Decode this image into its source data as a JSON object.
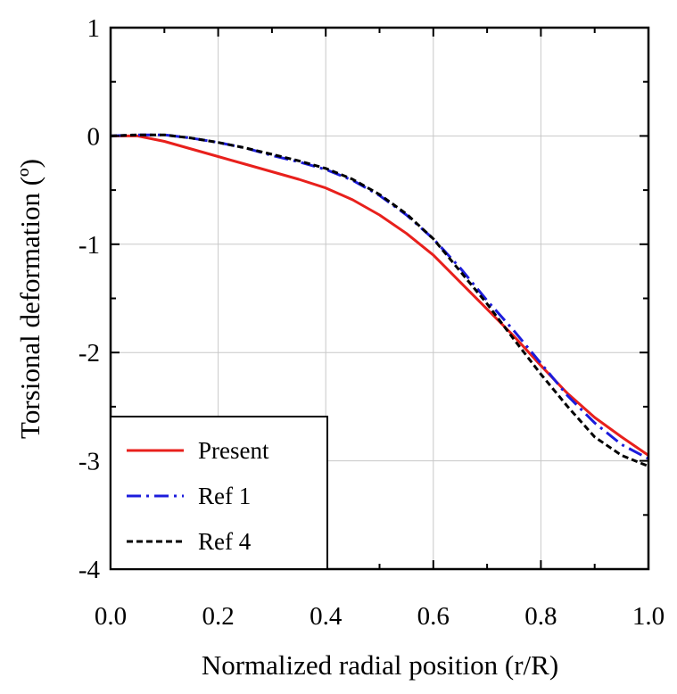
{
  "chart_data": {
    "type": "line",
    "xlabel": "Normalized radial position (r/R)",
    "ylabel": "Torsional deformation (º)",
    "xlim": [
      0.0,
      1.0
    ],
    "ylim": [
      -4,
      1
    ],
    "x_ticks": [
      0.0,
      0.2,
      0.4,
      0.6,
      0.8,
      1.0
    ],
    "x_tick_labels": [
      "0.0",
      "0.2",
      "0.4",
      "0.6",
      "0.8",
      "1.0"
    ],
    "y_ticks": [
      1,
      0,
      -1,
      -2,
      -3,
      -4
    ],
    "y_tick_labels": [
      "1",
      "0",
      "-1",
      "-2",
      "-3",
      "-4"
    ],
    "grid": true,
    "legend_position": "bottom-left",
    "series": [
      {
        "name": "Present",
        "color": "#e8201c",
        "style": "solid",
        "points": [
          [
            0.0,
            0.0
          ],
          [
            0.05,
            0.0
          ],
          [
            0.1,
            -0.05
          ],
          [
            0.15,
            -0.12
          ],
          [
            0.2,
            -0.19
          ],
          [
            0.25,
            -0.26
          ],
          [
            0.3,
            -0.33
          ],
          [
            0.35,
            -0.4
          ],
          [
            0.4,
            -0.48
          ],
          [
            0.45,
            -0.59
          ],
          [
            0.5,
            -0.73
          ],
          [
            0.55,
            -0.9
          ],
          [
            0.6,
            -1.1
          ],
          [
            0.65,
            -1.35
          ],
          [
            0.7,
            -1.6
          ],
          [
            0.75,
            -1.85
          ],
          [
            0.8,
            -2.12
          ],
          [
            0.85,
            -2.38
          ],
          [
            0.9,
            -2.6
          ],
          [
            0.95,
            -2.78
          ],
          [
            1.0,
            -2.95
          ]
        ]
      },
      {
        "name": "Ref 1",
        "color": "#1c1cdc",
        "style": "dashdot",
        "points": [
          [
            0.0,
            0.0
          ],
          [
            0.05,
            0.01
          ],
          [
            0.1,
            0.01
          ],
          [
            0.15,
            -0.02
          ],
          [
            0.2,
            -0.06
          ],
          [
            0.25,
            -0.11
          ],
          [
            0.3,
            -0.18
          ],
          [
            0.35,
            -0.24
          ],
          [
            0.4,
            -0.31
          ],
          [
            0.45,
            -0.41
          ],
          [
            0.5,
            -0.55
          ],
          [
            0.55,
            -0.73
          ],
          [
            0.6,
            -0.95
          ],
          [
            0.65,
            -1.22
          ],
          [
            0.7,
            -1.52
          ],
          [
            0.75,
            -1.8
          ],
          [
            0.8,
            -2.1
          ],
          [
            0.85,
            -2.4
          ],
          [
            0.9,
            -2.65
          ],
          [
            0.95,
            -2.85
          ],
          [
            1.0,
            -2.98
          ]
        ]
      },
      {
        "name": "Ref 4",
        "color": "#000000",
        "style": "dashed",
        "points": [
          [
            0.0,
            0.0
          ],
          [
            0.05,
            0.01
          ],
          [
            0.1,
            0.01
          ],
          [
            0.15,
            -0.02
          ],
          [
            0.2,
            -0.06
          ],
          [
            0.25,
            -0.11
          ],
          [
            0.3,
            -0.17
          ],
          [
            0.35,
            -0.23
          ],
          [
            0.4,
            -0.3
          ],
          [
            0.45,
            -0.4
          ],
          [
            0.5,
            -0.54
          ],
          [
            0.55,
            -0.72
          ],
          [
            0.6,
            -0.95
          ],
          [
            0.65,
            -1.25
          ],
          [
            0.7,
            -1.55
          ],
          [
            0.75,
            -1.88
          ],
          [
            0.8,
            -2.2
          ],
          [
            0.85,
            -2.5
          ],
          [
            0.9,
            -2.78
          ],
          [
            0.95,
            -2.95
          ],
          [
            1.0,
            -3.05
          ]
        ]
      }
    ]
  }
}
